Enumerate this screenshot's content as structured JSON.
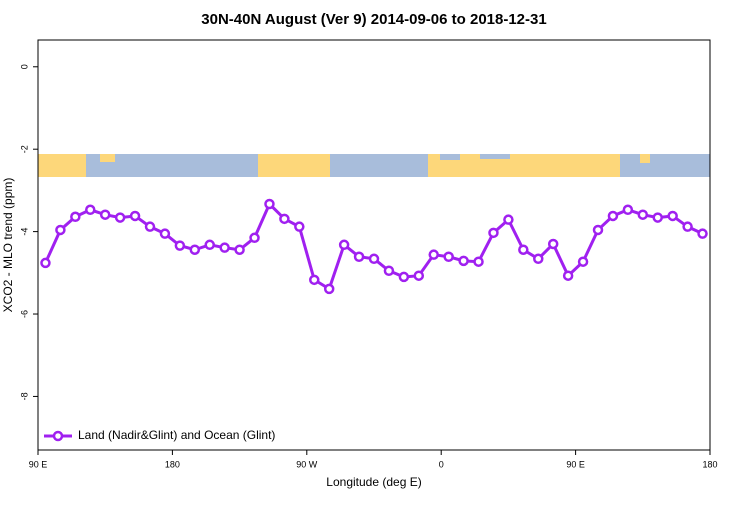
{
  "chart_data": {
    "type": "line",
    "title": "30N-40N August (Ver 9)   2014-09-06 to 2018-12-31",
    "x_label": "Longitude (deg E)",
    "y_label": "XCO2 - MLO trend (ppm)",
    "x": [
      95,
      105,
      115,
      125,
      135,
      145,
      155,
      165,
      175,
      185,
      195,
      205,
      215,
      225,
      235,
      245,
      255,
      265,
      275,
      285,
      295,
      305,
      315,
      325,
      335,
      345,
      355,
      365,
      375,
      385,
      395,
      405,
      415,
      425,
      435,
      445,
      455,
      465,
      475,
      485,
      495,
      505,
      515,
      525,
      535
    ],
    "series": [
      {
        "name": "Land (Nadir&Glint) and Ocean (Glint)",
        "color": "#a020f0",
        "values": [
          -4.76,
          -3.96,
          -3.64,
          -3.47,
          -3.59,
          -3.66,
          -3.62,
          -3.88,
          -4.05,
          -4.34,
          -4.44,
          -4.32,
          -4.39,
          -4.44,
          -4.15,
          -3.33,
          -3.69,
          -3.88,
          -5.17,
          -5.39,
          -4.32,
          -4.61,
          -4.66,
          -4.95,
          -5.1,
          -5.07,
          -4.56,
          -4.61,
          -4.71,
          -4.73,
          -4.03,
          -3.71,
          -4.44,
          -4.66,
          -4.3,
          -5.07,
          -4.73,
          -3.96,
          -3.62,
          -3.47,
          -3.59,
          -3.66,
          -3.62,
          -3.88,
          -4.05
        ]
      }
    ],
    "xlim": [
      90,
      540
    ],
    "xticks": [
      {
        "value": 90,
        "label": "90 E"
      },
      180,
      {
        "value": 270,
        "label": "90 W"
      },
      {
        "value": 360,
        "label": "0"
      },
      {
        "value": 450,
        "label": "90 E"
      },
      {
        "value": 540,
        "label": "180"
      }
    ],
    "ylim": [
      -9.3,
      0.65
    ],
    "yticks": [
      0,
      -2,
      -4,
      -6,
      -8
    ],
    "legend": "bottom-left"
  }
}
